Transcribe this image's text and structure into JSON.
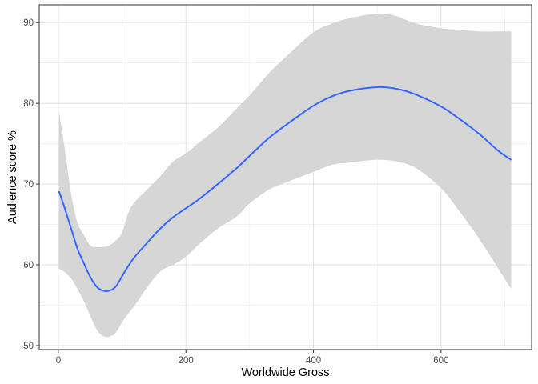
{
  "chart_data": {
    "type": "line",
    "title": "",
    "xlabel": "Worldwide Gross",
    "ylabel": "Audience  score %",
    "xlim": [
      -30,
      742
    ],
    "ylim": [
      49.5,
      92.2
    ],
    "x_ticks": [
      0,
      200,
      400,
      600
    ],
    "y_ticks": [
      50,
      60,
      70,
      80,
      90
    ],
    "x_minor_ticks": [
      100,
      300,
      500,
      700
    ],
    "y_minor_ticks": [
      55,
      65,
      75,
      85
    ],
    "grid": true,
    "legend": "none",
    "series": [
      {
        "line_color": "#3366ff",
        "band_color": "#d6d6d6",
        "x": [
          1,
          10,
          20,
          30,
          40,
          50,
          60,
          70,
          80,
          90,
          100,
          110,
          120,
          140,
          160,
          180,
          200,
          220,
          250,
          280,
          300,
          330,
          360,
          400,
          430,
          460,
          500,
          530,
          560,
          600,
          630,
          660,
          690,
          710
        ],
        "y": [
          69.1,
          67.0,
          64.5,
          62.0,
          60.2,
          58.5,
          57.3,
          56.8,
          56.8,
          57.3,
          58.6,
          59.9,
          61.0,
          62.8,
          64.5,
          65.9,
          67.0,
          68.1,
          70.0,
          72.0,
          73.5,
          75.7,
          77.5,
          79.7,
          80.9,
          81.6,
          82.0,
          81.8,
          81.1,
          79.6,
          78.0,
          76.2,
          74.1,
          73.0
        ],
        "lower": [
          59.5,
          59.1,
          58.3,
          57.0,
          55.5,
          53.7,
          52.0,
          51.2,
          51.1,
          51.6,
          52.9,
          54.0,
          55.0,
          57.3,
          59.2,
          60.0,
          61.0,
          62.5,
          64.5,
          66.0,
          67.6,
          69.3,
          70.3,
          71.5,
          72.4,
          72.7,
          73.0,
          72.8,
          72.0,
          69.5,
          66.5,
          63.2,
          59.5,
          57.0
        ],
        "upper": [
          79.0,
          74.4,
          68.8,
          65.2,
          63.7,
          62.4,
          62.2,
          62.2,
          62.4,
          63.0,
          64.0,
          66.5,
          67.8,
          69.4,
          71.0,
          72.8,
          73.8,
          75.1,
          77.0,
          79.4,
          81.0,
          83.7,
          86.0,
          88.8,
          89.9,
          90.6,
          91.1,
          90.8,
          89.9,
          89.3,
          89.1,
          88.9,
          88.9,
          88.9
        ]
      }
    ]
  }
}
